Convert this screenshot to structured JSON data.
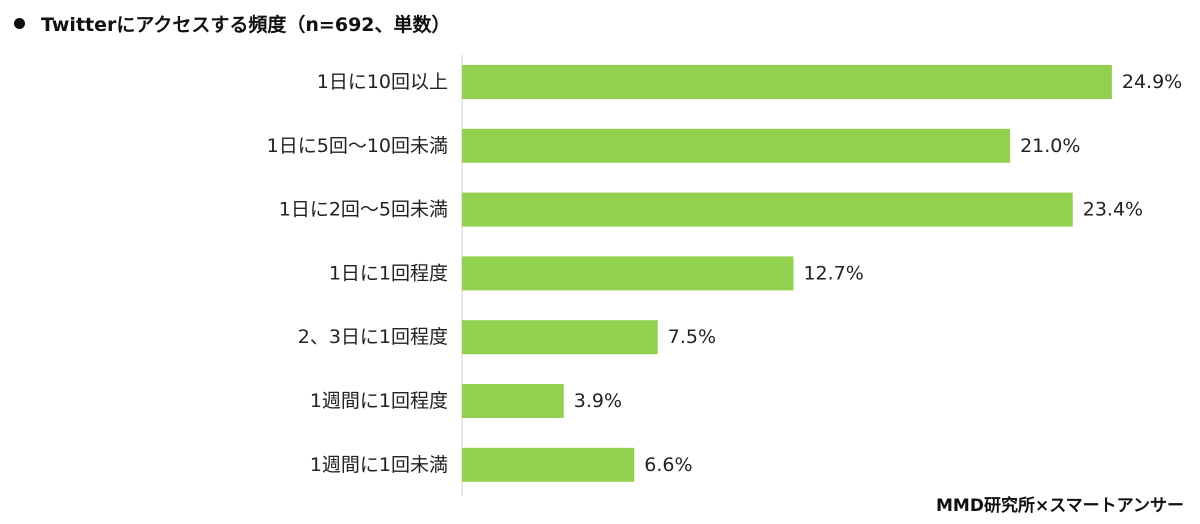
{
  "chart_data": {
    "type": "bar",
    "orientation": "horizontal",
    "title": "Twitterにアクセスする頻度（n=692、単数）",
    "categories": [
      "1日に10回以上",
      "1日に5回～10回未満",
      "1日に2回～5回未満",
      "1日に1回程度",
      "2、3日に1回程度",
      "1週間に1回程度",
      "1週間に1回未満"
    ],
    "values": [
      24.9,
      21.0,
      23.4,
      12.7,
      7.5,
      3.9,
      6.6
    ],
    "value_labels": [
      "24.9%",
      "21.0%",
      "23.4%",
      "12.7%",
      "7.5%",
      "3.9%",
      "6.6%"
    ],
    "unit": "%",
    "xlim": [
      0,
      30
    ],
    "grid": false,
    "legend": "none",
    "bar_color": "#92d050"
  },
  "source": "MMD研究所×スマートアンサー"
}
